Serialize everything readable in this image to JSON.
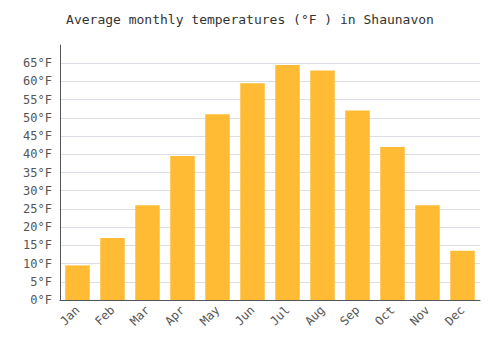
{
  "chart_data": {
    "type": "bar",
    "title": "Average monthly temperatures (°F ) in Shaunavon",
    "categories": [
      "Jan",
      "Feb",
      "Mar",
      "Apr",
      "May",
      "Jun",
      "Jul",
      "Aug",
      "Sep",
      "Oct",
      "Nov",
      "Dec"
    ],
    "values": [
      9.5,
      17,
      26,
      39.5,
      51,
      59.5,
      64.5,
      63,
      52,
      42,
      26,
      13.5
    ],
    "color": "#FFBB33",
    "ylim": [
      0,
      70
    ],
    "yticks": [
      {
        "value": 0,
        "label": "0°F"
      },
      {
        "value": 5,
        "label": "5°F"
      },
      {
        "value": 10,
        "label": "10°F"
      },
      {
        "value": 15,
        "label": "15°F"
      },
      {
        "value": 20,
        "label": "20°F"
      },
      {
        "value": 25,
        "label": "25°F"
      },
      {
        "value": 30,
        "label": "30°F"
      },
      {
        "value": 35,
        "label": "35°F"
      },
      {
        "value": 40,
        "label": "40°F"
      },
      {
        "value": 45,
        "label": "45°F"
      },
      {
        "value": 50,
        "label": "50°F"
      },
      {
        "value": 55,
        "label": "55°F"
      },
      {
        "value": 60,
        "label": "60°F"
      },
      {
        "value": 65,
        "label": "65°F"
      }
    ],
    "grid": true
  }
}
